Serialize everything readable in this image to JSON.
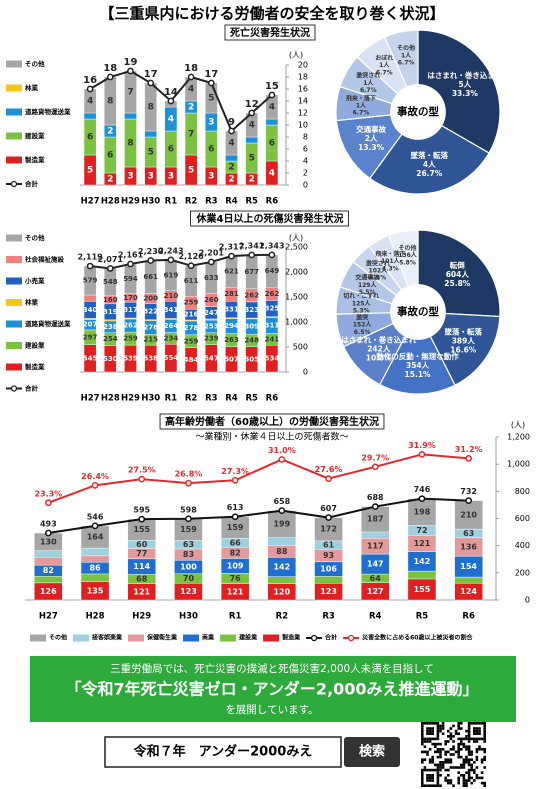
{
  "title": "【三重県内における労働者の安全を取り巻く状況】",
  "chart_data": [
    {
      "type": "bar",
      "title": "死亡災害発生状況",
      "y_unit": "(人)",
      "categories": [
        "H27",
        "H28",
        "H29",
        "H30",
        "R1",
        "R2",
        "R3",
        "R4",
        "R5",
        "R6"
      ],
      "series": [
        {
          "name": "製造業",
          "color": "#e02020",
          "values": [
            5,
            2,
            3,
            3,
            3,
            5,
            3,
            2,
            2,
            4
          ]
        },
        {
          "name": "建設業",
          "color": "#7cc242",
          "values": [
            6,
            6,
            8,
            5,
            6,
            7,
            6,
            2,
            5,
            6
          ]
        },
        {
          "name": "道路貨物運送業",
          "color": "#1e90d8",
          "values": [
            1,
            2,
            1,
            1,
            4,
            2,
            3,
            1,
            1,
            1
          ]
        },
        {
          "name": "林業",
          "color": "#f5c518",
          "values": [
            0,
            0,
            0,
            0,
            0,
            0,
            0,
            0,
            0,
            0
          ]
        },
        {
          "name": "その他",
          "color": "#a6a6a6",
          "values": [
            4,
            8,
            7,
            8,
            1,
            4,
            5,
            4,
            4,
            4
          ]
        }
      ],
      "lines": [
        {
          "name": "合計",
          "color": "#222222",
          "values": [
            16,
            18,
            19,
            17,
            14,
            18,
            17,
            9,
            12,
            15
          ]
        }
      ],
      "ylim": [
        0,
        20
      ],
      "yticks": [
        0,
        2,
        4,
        6,
        8,
        10,
        12,
        14,
        16,
        18,
        20
      ],
      "legend": "left"
    },
    {
      "type": "pie",
      "center_label": "事故の型",
      "labels": [
        "はさまれ・巻き込まれ",
        "墜落・転落",
        "交通事故",
        "飛来・落下",
        "激突され",
        "おぼれ",
        "その他"
      ],
      "values": [
        5,
        4,
        2,
        1,
        1,
        1,
        1
      ],
      "value_labels": [
        "5人",
        "4人",
        "2人",
        "1人",
        "1人",
        "1人",
        "1人"
      ],
      "percent_labels": [
        "33.3%",
        "26.7%",
        "13.3%",
        "6.7%",
        "6.7%",
        "6.7%",
        "6.7%"
      ],
      "colors": [
        "#1f3864",
        "#2f5597",
        "#5b82cc",
        "#8faadc",
        "#b4c7e7",
        "#dae3f3",
        "#c5d3ea"
      ]
    },
    {
      "type": "bar",
      "title": "休業4日以上の死傷災害発生状況",
      "y_unit": "(人)",
      "categories": [
        "H27",
        "H28",
        "H29",
        "H30",
        "R1",
        "R2",
        "R3",
        "R4",
        "R5",
        "R6"
      ],
      "series": [
        {
          "name": "製造業",
          "color": "#e02020",
          "values": [
            545,
            530,
            539,
            538,
            554,
            484,
            547,
            507,
            505,
            534
          ]
        },
        {
          "name": "建設業",
          "color": "#7cc242",
          "values": [
            297,
            254,
            259,
            215,
            234,
            259,
            239,
            263,
            248,
            241
          ]
        },
        {
          "name": "道路貨物運送業",
          "color": "#1e90d8",
          "values": [
            207,
            238,
            262,
            276,
            264,
            278,
            253,
            294,
            309,
            311
          ]
        },
        {
          "name": "林業",
          "color": "#f5c518",
          "values": [
            24,
            22,
            20,
            18,
            21,
            19,
            22,
            20,
            17,
            21
          ]
        },
        {
          "name": "小売業",
          "color": "#2060c0",
          "values": [
            340,
            319,
            317,
            322,
            341,
            216,
            247,
            331,
            323,
            325
          ]
        },
        {
          "name": "社会福祉施設",
          "color": "#f08080",
          "values": [
            127,
            160,
            170,
            200,
            210,
            259,
            260,
            281,
            262,
            262
          ]
        },
        {
          "name": "その他",
          "color": "#a6a6a6",
          "values": [
            579,
            548,
            594,
            661,
            619,
            611,
            633,
            621,
            677,
            649
          ]
        }
      ],
      "lines": [
        {
          "name": "合計",
          "color": "#222222",
          "values": [
            2119,
            2071,
            2161,
            2230,
            2243,
            2126,
            2201,
            2317,
            2341,
            2343
          ],
          "value_labels": [
            "2,119",
            "2,071",
            "2,161",
            "2,230",
            "2,243",
            "2,126",
            "2,201",
            "2,317",
            "2,341",
            "2,343"
          ]
        }
      ],
      "ylim": [
        0,
        2500
      ],
      "yticks": [
        0,
        500,
        {
          "value": 1000,
          "label": "1,000"
        },
        {
          "value": 1500,
          "label": "1,500"
        },
        {
          "value": 2000,
          "label": "2,000"
        },
        {
          "value": 2500,
          "label": "2,500"
        }
      ],
      "legend": "left"
    },
    {
      "type": "pie",
      "center_label": "事故の型",
      "labels": [
        "転倒",
        "墜落・転落",
        "動作の反動・無理な動作",
        "はさまれ・巻き込まれ",
        "激突",
        "切れ・こすれ",
        "交通事故",
        "激突され",
        "飛来・落下",
        "その他"
      ],
      "values": [
        604,
        389,
        354,
        242,
        152,
        125,
        129,
        102,
        101,
        136
      ],
      "value_labels": [
        "604人",
        "389人",
        "354人",
        "242人",
        "152人",
        "125人",
        "129人",
        "102人",
        "101人",
        "136人"
      ],
      "percent_labels": [
        "25.8%",
        "16.6%",
        "15.1%",
        "10.3%",
        "6.5%",
        "5.3%",
        "5.5%",
        "4.4%",
        "4.3%",
        "5.8%"
      ],
      "colors": [
        "#1f3864",
        "#2f5597",
        "#4472c4",
        "#5b7fc9",
        "#8faadc",
        "#a9bfe3",
        "#b4c7e7",
        "#c9d7ee",
        "#dae3f3",
        "#e9eff8"
      ]
    },
    {
      "type": "bar",
      "title": "高年齢労働者（60歳以上）の労働災害発生状況",
      "subtitle": "～業種別・休業４日以上の死傷者数～",
      "y_unit": "(人)",
      "categories": [
        "H27",
        "H28",
        "H29",
        "H30",
        "R1",
        "R2",
        "R3",
        "R4",
        "R5",
        "R6"
      ],
      "series": [
        {
          "name": "製造業",
          "color": "#e02020",
          "values": [
            126,
            135,
            121,
            123,
            121,
            120,
            123,
            127,
            155,
            124
          ]
        },
        {
          "name": "建設業",
          "color": "#7cc242",
          "values": [
            49,
            57,
            68,
            70,
            76,
            52,
            52,
            64,
            58,
            45
          ]
        },
        {
          "name": "商業",
          "color": "#1f6fd0",
          "values": [
            82,
            86,
            114,
            100,
            109,
            142,
            106,
            147,
            142,
            154
          ]
        },
        {
          "name": "保健衛生業",
          "color": "#e39a9a",
          "values": [
            58,
            47,
            77,
            83,
            82,
            88,
            93,
            117,
            121,
            136
          ]
        },
        {
          "name": "接客娯楽業",
          "color": "#9fd0e0",
          "values": [
            48,
            57,
            60,
            63,
            66,
            57,
            61,
            46,
            72,
            63
          ]
        },
        {
          "name": "その他",
          "color": "#a6a6a6",
          "values": [
            130,
            164,
            155,
            159,
            159,
            199,
            172,
            187,
            198,
            210
          ]
        }
      ],
      "lines": [
        {
          "name": "合計",
          "color": "#111111",
          "values": [
            493,
            546,
            595,
            598,
            613,
            658,
            607,
            688,
            746,
            732
          ]
        },
        {
          "name": "災害全数に占める60歳以上被災者の割合",
          "color": "#e8262a",
          "axis": "y2",
          "values": [
            23.3,
            26.4,
            27.5,
            26.8,
            27.3,
            31.0,
            27.6,
            29.7,
            31.9,
            31.2
          ],
          "value_labels": [
            "23.3%",
            "26.4%",
            "27.5%",
            "26.8%",
            "27.3%",
            "31.0%",
            "27.6%",
            "29.7%",
            "31.9%",
            "31.2%"
          ]
        }
      ],
      "ylim": [
        0,
        1200
      ],
      "yticks": [
        0,
        200,
        400,
        600,
        800,
        {
          "value": 1000,
          "label": "1,000"
        },
        {
          "value": 1200,
          "label": "1,200"
        }
      ],
      "y2lim": [
        6,
        35
      ],
      "legend": "bottom"
    }
  ],
  "footer": {
    "line1": "三重労働局では、死亡災害の撲滅と死傷災害2,000人未満を目指して",
    "line2": "「令和7年死亡災害ゼロ・アンダー2,000みえ推進運動」",
    "line3": "を展開しています。",
    "search_text": "令和７年　アンダー2000みえ",
    "search_button": "検索"
  }
}
